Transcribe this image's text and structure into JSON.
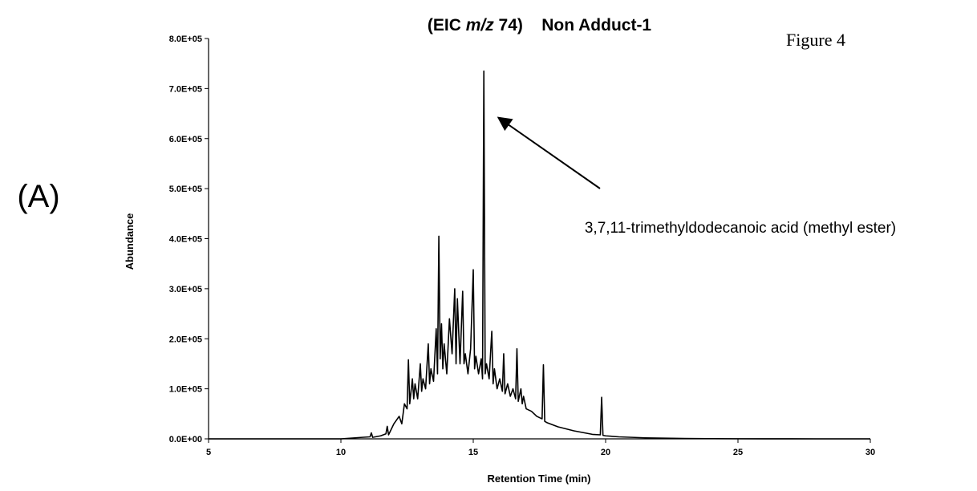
{
  "figure_label": "Figure 4",
  "panel_label": "(A)",
  "annotation": {
    "text": "3,7,11-trimethyldodecanoic acid (methyl ester)",
    "points_to": {
      "x": 15.4,
      "y": 735000
    }
  },
  "chart_data": {
    "type": "line",
    "title_parts": [
      {
        "text": "(EIC ",
        "italic": false
      },
      {
        "text": "m/z",
        "italic": true
      },
      {
        "text": " 74)",
        "italic": false
      },
      {
        "text": "    Non Adduct-1",
        "italic": false
      }
    ],
    "xlabel": "Retention Time (min)",
    "ylabel": "Abundance",
    "xlim": [
      5,
      30
    ],
    "ylim": [
      0,
      800000
    ],
    "xticks": [
      5,
      10,
      15,
      20,
      25,
      30
    ],
    "xtick_labels": [
      "5",
      "10",
      "15",
      "20",
      "25",
      "30"
    ],
    "yticks": [
      0,
      100000,
      200000,
      300000,
      400000,
      500000,
      600000,
      700000,
      800000
    ],
    "ytick_labels": [
      "0.0E+00",
      "1.0E+05",
      "2.0E+05",
      "3.0E+05",
      "4.0E+05",
      "5.0E+05",
      "6.0E+05",
      "7.0E+05",
      "8.0E+05"
    ],
    "grid": false,
    "legend": "none",
    "line_color": "#000000",
    "series": [
      {
        "x": [
          5,
          10,
          10.8,
          11.1,
          11.15,
          11.2,
          11.5,
          11.7,
          11.75,
          11.8,
          12.0,
          12.2,
          12.3,
          12.4,
          12.5,
          12.55,
          12.6,
          12.7,
          12.75,
          12.8,
          12.9,
          13.0,
          13.05,
          13.1,
          13.2,
          13.3,
          13.35,
          13.4,
          13.5,
          13.6,
          13.65,
          13.7,
          13.75,
          13.8,
          13.85,
          13.9,
          14.0,
          14.1,
          14.2,
          14.3,
          14.35,
          14.4,
          14.5,
          14.6,
          14.65,
          14.7,
          14.8,
          14.9,
          15.0,
          15.05,
          15.1,
          15.2,
          15.3,
          15.35,
          15.4,
          15.45,
          15.5,
          15.6,
          15.7,
          15.75,
          15.8,
          15.9,
          16.0,
          16.1,
          16.15,
          16.2,
          16.3,
          16.4,
          16.5,
          16.6,
          16.65,
          16.7,
          16.8,
          16.85,
          16.9,
          17.0,
          17.2,
          17.4,
          17.6,
          17.65,
          17.7,
          17.8,
          18.0,
          18.2,
          18.5,
          18.8,
          19.2,
          19.5,
          19.8,
          19.85,
          19.9,
          20.0,
          20.5,
          21.0,
          21.5,
          22.0,
          23.0,
          24.0,
          25.0,
          26.0,
          27.0,
          28.0,
          29.0,
          30.0
        ],
        "y": [
          0,
          0,
          3000,
          4000,
          12000,
          3000,
          6000,
          10000,
          25000,
          8000,
          30000,
          45000,
          30000,
          70000,
          60000,
          158000,
          70000,
          120000,
          80000,
          110000,
          80000,
          150000,
          95000,
          120000,
          100000,
          190000,
          110000,
          140000,
          115000,
          220000,
          130000,
          405000,
          160000,
          230000,
          140000,
          190000,
          130000,
          240000,
          170000,
          300000,
          150000,
          280000,
          150000,
          295000,
          150000,
          170000,
          130000,
          180000,
          338000,
          140000,
          165000,
          130000,
          160000,
          120000,
          735000,
          130000,
          150000,
          120000,
          215000,
          110000,
          140000,
          100000,
          120000,
          95000,
          170000,
          90000,
          110000,
          85000,
          100000,
          80000,
          180000,
          75000,
          100000,
          70000,
          85000,
          60000,
          55000,
          45000,
          40000,
          148000,
          35000,
          32000,
          28000,
          24000,
          20000,
          16000,
          12000,
          9000,
          8000,
          83000,
          7000,
          6000,
          4000,
          3000,
          2000,
          1500,
          800,
          400,
          200,
          100,
          50,
          20,
          10,
          0
        ]
      }
    ]
  }
}
